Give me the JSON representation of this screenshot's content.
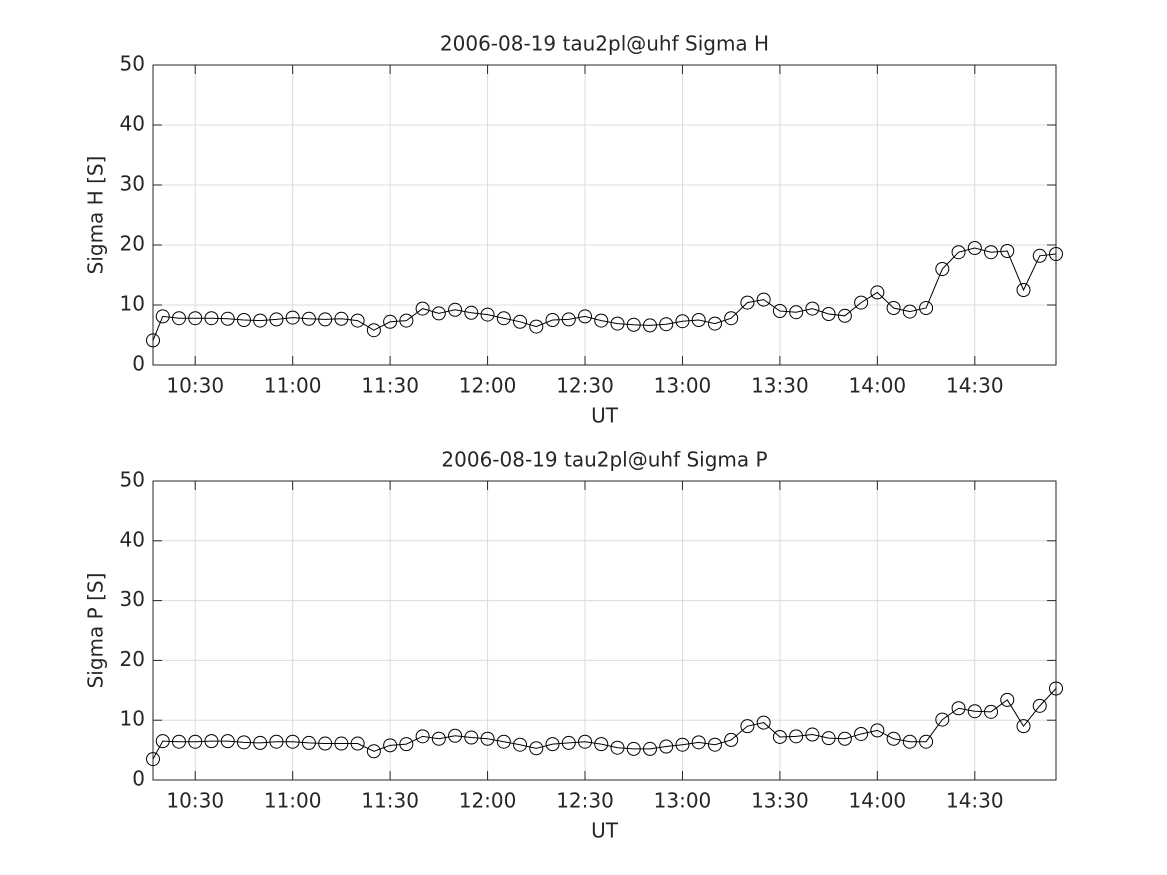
{
  "chart_data": [
    {
      "type": "line",
      "title": "2006-08-19  tau2pl@uhf Sigma H",
      "xlabel": "UT",
      "ylabel": "Sigma H [S]",
      "x": [
        "10:17",
        "10:20",
        "10:25",
        "10:30",
        "10:35",
        "10:40",
        "10:45",
        "10:50",
        "10:55",
        "11:00",
        "11:05",
        "11:10",
        "11:15",
        "11:20",
        "11:25",
        "11:30",
        "11:35",
        "11:40",
        "11:45",
        "11:50",
        "11:55",
        "12:00",
        "12:05",
        "12:10",
        "12:15",
        "12:20",
        "12:25",
        "12:30",
        "12:35",
        "12:40",
        "12:45",
        "12:50",
        "12:55",
        "13:00",
        "13:05",
        "13:10",
        "13:15",
        "13:20",
        "13:25",
        "13:30",
        "13:35",
        "13:40",
        "13:45",
        "13:50",
        "13:55",
        "14:00",
        "14:05",
        "14:10",
        "14:15",
        "14:20",
        "14:25",
        "14:30",
        "14:35",
        "14:40",
        "14:45",
        "14:50",
        "14:55"
      ],
      "values": [
        4.1,
        8.1,
        7.8,
        7.8,
        7.8,
        7.7,
        7.5,
        7.4,
        7.6,
        7.9,
        7.7,
        7.6,
        7.7,
        7.4,
        5.8,
        7.2,
        7.4,
        9.4,
        8.6,
        9.2,
        8.7,
        8.4,
        7.8,
        7.2,
        6.4,
        7.5,
        7.6,
        8.1,
        7.4,
        6.9,
        6.7,
        6.6,
        6.8,
        7.3,
        7.5,
        6.9,
        7.8,
        10.4,
        10.9,
        9.0,
        8.8,
        9.4,
        8.5,
        8.2,
        10.4,
        12.1,
        9.5,
        8.9,
        9.5,
        16.0,
        18.8,
        19.5,
        18.8,
        19.0,
        12.5,
        18.2,
        18.5
      ],
      "color": "#000000",
      "marker": "circle",
      "xlim": [
        "10:17",
        "14:55"
      ],
      "xticks": [
        "10:30",
        "11:00",
        "11:30",
        "12:00",
        "12:30",
        "13:00",
        "13:30",
        "14:00",
        "14:30"
      ],
      "ylim": [
        0,
        50
      ],
      "yticks": [
        0,
        10,
        20,
        30,
        40,
        50
      ],
      "grid": true
    },
    {
      "type": "line",
      "title": "2006-08-19  tau2pl@uhf Sigma P",
      "xlabel": "UT",
      "ylabel": "Sigma P [S]",
      "x": [
        "10:17",
        "10:20",
        "10:25",
        "10:30",
        "10:35",
        "10:40",
        "10:45",
        "10:50",
        "10:55",
        "11:00",
        "11:05",
        "11:10",
        "11:15",
        "11:20",
        "11:25",
        "11:30",
        "11:35",
        "11:40",
        "11:45",
        "11:50",
        "11:55",
        "12:00",
        "12:05",
        "12:10",
        "12:15",
        "12:20",
        "12:25",
        "12:30",
        "12:35",
        "12:40",
        "12:45",
        "12:50",
        "12:55",
        "13:00",
        "13:05",
        "13:10",
        "13:15",
        "13:20",
        "13:25",
        "13:30",
        "13:35",
        "13:40",
        "13:45",
        "13:50",
        "13:55",
        "14:00",
        "14:05",
        "14:10",
        "14:15",
        "14:20",
        "14:25",
        "14:30",
        "14:35",
        "14:40",
        "14:45",
        "14:50",
        "14:55"
      ],
      "values": [
        3.5,
        6.5,
        6.4,
        6.4,
        6.5,
        6.5,
        6.3,
        6.2,
        6.4,
        6.4,
        6.2,
        6.1,
        6.1,
        6.1,
        4.8,
        5.8,
        6.0,
        7.3,
        6.9,
        7.4,
        7.1,
        6.9,
        6.4,
        5.9,
        5.3,
        6.0,
        6.2,
        6.4,
        6.0,
        5.4,
        5.2,
        5.2,
        5.6,
        5.9,
        6.3,
        5.9,
        6.7,
        9.0,
        9.6,
        7.2,
        7.3,
        7.6,
        7.0,
        6.9,
        7.7,
        8.3,
        6.9,
        6.4,
        6.4,
        10.1,
        12.0,
        11.5,
        11.4,
        13.4,
        9.0,
        12.4,
        15.3
      ],
      "color": "#000000",
      "marker": "circle",
      "xlim": [
        "10:17",
        "14:55"
      ],
      "xticks": [
        "10:30",
        "11:00",
        "11:30",
        "12:00",
        "12:30",
        "13:00",
        "13:30",
        "14:00",
        "14:30"
      ],
      "ylim": [
        0,
        50
      ],
      "yticks": [
        0,
        10,
        20,
        30,
        40,
        50
      ],
      "grid": true
    }
  ]
}
